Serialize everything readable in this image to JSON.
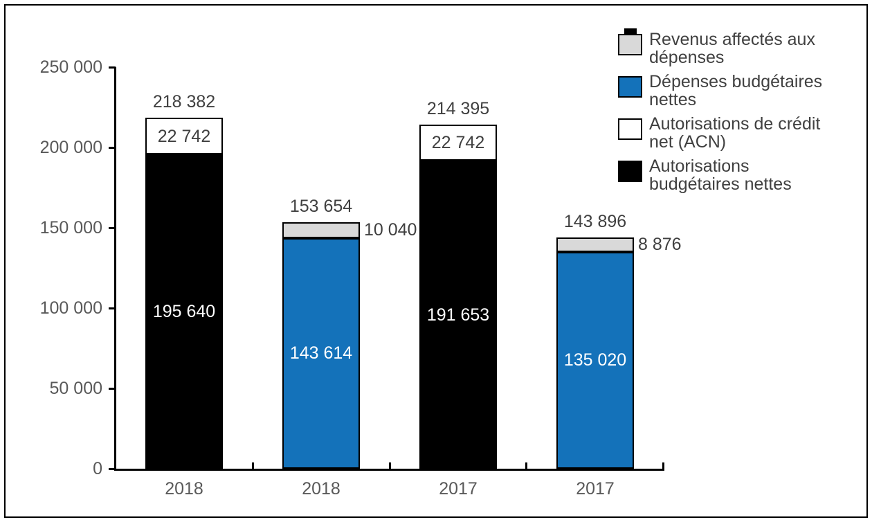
{
  "figure": {
    "background": "#ffffff",
    "frame_border_color": "#000000"
  },
  "chart_data": {
    "type": "bar",
    "stacked": true,
    "title": "",
    "xlabel": "",
    "ylabel": "",
    "grid": false,
    "categories": [
      "2018",
      "2018",
      "2017",
      "2017"
    ],
    "y_axis": {
      "min": 0,
      "max": 250000,
      "tick_interval": 50000,
      "ticks": [
        {
          "value": 0,
          "label": "0"
        },
        {
          "value": 50000,
          "label": "50 000"
        },
        {
          "value": 100000,
          "label": "100 000"
        },
        {
          "value": 150000,
          "label": "150 000"
        },
        {
          "value": 200000,
          "label": "200 000"
        },
        {
          "value": 250000,
          "label": "250 000"
        }
      ]
    },
    "bars": [
      {
        "category": "2018",
        "total": 218382,
        "total_label": "218 382",
        "segments": [
          {
            "series": "Autorisations budgétaires nettes",
            "value": 195640,
            "label": "195 640",
            "color": "#000000",
            "label_color": "#ffffff",
            "label_placement": "inside"
          },
          {
            "series": "Autorisations de crédit net (ACN)",
            "value": 22742,
            "label": "22 742",
            "color": "#ffffff",
            "label_color": "#3f3f3f",
            "label_placement": "inside"
          }
        ]
      },
      {
        "category": "2018",
        "total": 153654,
        "total_label": "153 654",
        "segments": [
          {
            "series": "Dépenses budgétaires nettes",
            "value": 143614,
            "label": "143 614",
            "color": "#1472ba",
            "label_color": "#ffffff",
            "label_placement": "inside"
          },
          {
            "series": "Revenus affectés aux dépenses",
            "value": 10040,
            "label": "10 040",
            "color": "#d9d9d9",
            "label_color": "#3f3f3f",
            "label_placement": "outside-right"
          }
        ]
      },
      {
        "category": "2017",
        "total": 214395,
        "total_label": "214 395",
        "segments": [
          {
            "series": "Autorisations budgétaires nettes",
            "value": 191653,
            "label": "191 653",
            "color": "#000000",
            "label_color": "#ffffff",
            "label_placement": "inside"
          },
          {
            "series": "Autorisations de crédit net (ACN)",
            "value": 22742,
            "label": "22 742",
            "color": "#ffffff",
            "label_color": "#3f3f3f",
            "label_placement": "inside"
          }
        ]
      },
      {
        "category": "2017",
        "total": 143896,
        "total_label": "143 896",
        "segments": [
          {
            "series": "Dépenses budgétaires nettes",
            "value": 135020,
            "label": "135 020",
            "color": "#1472ba",
            "label_color": "#ffffff",
            "label_placement": "inside"
          },
          {
            "series": "Revenus affectés aux dépenses",
            "value": 8876,
            "label": "8 876",
            "color": "#d9d9d9",
            "label_color": "#3f3f3f",
            "label_placement": "outside-right"
          }
        ]
      }
    ],
    "legend": {
      "position": "top-right",
      "items": [
        {
          "label": "Revenus affectés aux dépenses",
          "color": "#d9d9d9",
          "border": "#000000",
          "cap": true
        },
        {
          "label": "Dépenses budgétaires nettes",
          "color": "#1472ba",
          "border": "#000000",
          "cap": false
        },
        {
          "label": "Autorisations de crédit net (ACN)",
          "color": "#ffffff",
          "border": "#000000",
          "cap": false
        },
        {
          "label": "Autorisations budgétaires nettes",
          "color": "#000000",
          "border": "#000000",
          "cap": false
        }
      ]
    },
    "colors": {
      "axis": "#000000",
      "tick_label_text": "#595959",
      "data_label_text": "#404040",
      "inside_dark_label_text": "#ffffff"
    }
  }
}
